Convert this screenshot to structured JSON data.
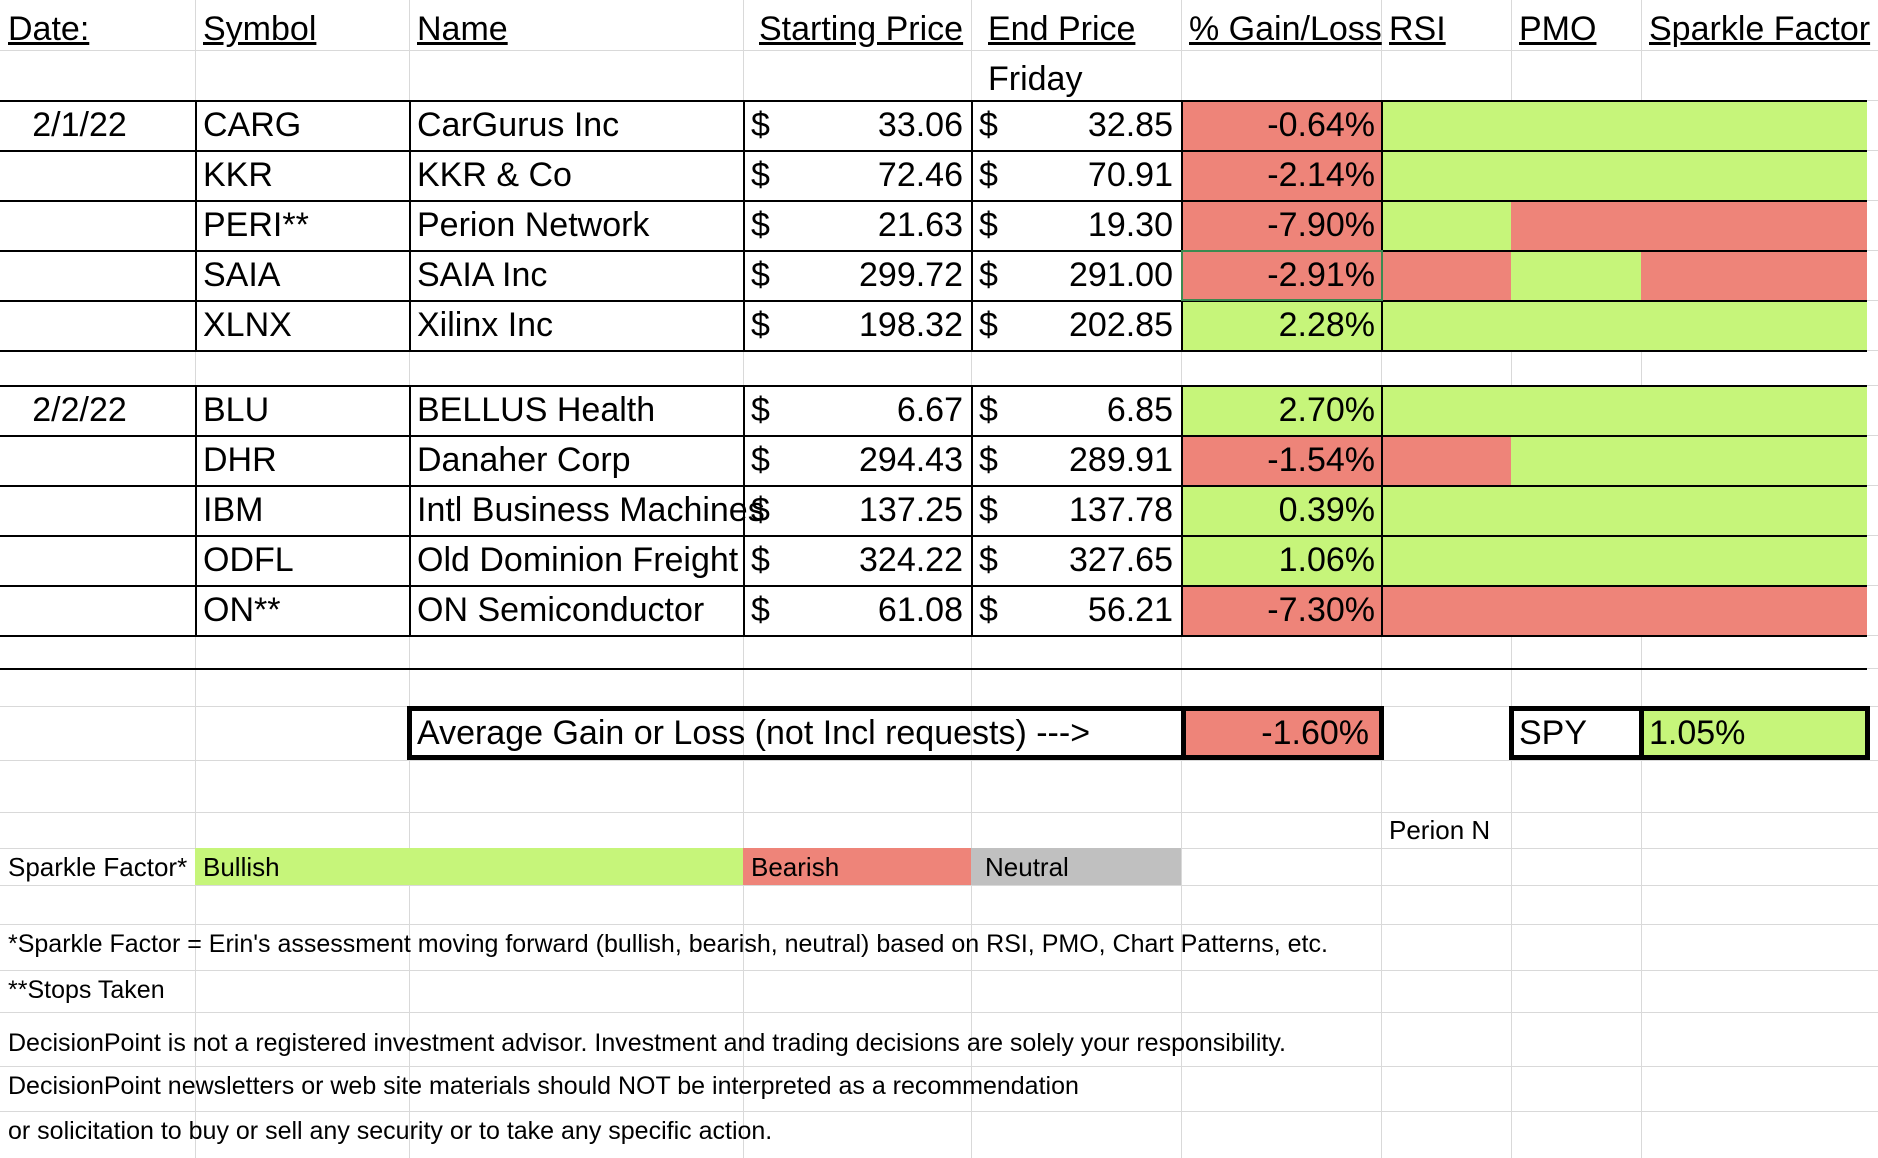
{
  "colors": {
    "bullish": "#c6f57a",
    "bearish": "#ee8479",
    "neutral": "#c0c0c0",
    "gridline": "#d9d9d9"
  },
  "headers": {
    "date": "Date:",
    "symbol": "Symbol",
    "name": "Name",
    "start_price": "Starting Price",
    "end_price": "End Price",
    "end_price_sub": "Friday",
    "gain_loss": "% Gain/Loss",
    "rsi": "RSI",
    "pmo": "PMO",
    "sparkle": "Sparkle Factor"
  },
  "currency_symbol": "$",
  "rows": [
    {
      "date": "2/1/22",
      "symbol": "CARG",
      "name": "CarGurus Inc",
      "start": "33.06",
      "end": "32.85",
      "gain": "-0.64%",
      "gain_status": "bearish",
      "rsi": "bullish",
      "pmo": "bullish",
      "sparkle": "bullish"
    },
    {
      "date": "",
      "symbol": "KKR",
      "name": "KKR & Co",
      "start": "72.46",
      "end": "70.91",
      "gain": "-2.14%",
      "gain_status": "bearish",
      "rsi": "bullish",
      "pmo": "bullish",
      "sparkle": "bullish"
    },
    {
      "date": "",
      "symbol": "PERI**",
      "name": "Perion Network",
      "start": "21.63",
      "end": "19.30",
      "gain": "-7.90%",
      "gain_status": "bearish",
      "rsi": "bullish",
      "pmo": "bearish",
      "sparkle": "bearish"
    },
    {
      "date": "",
      "symbol": "SAIA",
      "name": "SAIA Inc",
      "start": "299.72",
      "end": "291.00",
      "gain": "-2.91%",
      "gain_status": "bearish",
      "rsi": "bearish",
      "pmo": "bullish",
      "sparkle": "bearish"
    },
    {
      "date": "",
      "symbol": "XLNX",
      "name": "Xilinx Inc",
      "start": "198.32",
      "end": "202.85",
      "gain": "2.28%",
      "gain_status": "bullish",
      "rsi": "bullish",
      "pmo": "bullish",
      "sparkle": "bullish"
    },
    {
      "date": "2/2/22",
      "symbol": "BLU",
      "name": "BELLUS Health",
      "start": "6.67",
      "end": "6.85",
      "gain": "2.70%",
      "gain_status": "bullish",
      "rsi": "bullish",
      "pmo": "bullish",
      "sparkle": "bullish"
    },
    {
      "date": "",
      "symbol": "DHR",
      "name": "Danaher Corp",
      "start": "294.43",
      "end": "289.91",
      "gain": "-1.54%",
      "gain_status": "bearish",
      "rsi": "bearish",
      "pmo": "bullish",
      "sparkle": "bullish"
    },
    {
      "date": "",
      "symbol": "IBM",
      "name": "Intl Business Machines",
      "start": "137.25",
      "end": "137.78",
      "gain": "0.39%",
      "gain_status": "bullish",
      "rsi": "bullish",
      "pmo": "bullish",
      "sparkle": "bullish"
    },
    {
      "date": "",
      "symbol": "ODFL",
      "name": "Old Dominion Freight",
      "start": "324.22",
      "end": "327.65",
      "gain": "1.06%",
      "gain_status": "bullish",
      "rsi": "bullish",
      "pmo": "bullish",
      "sparkle": "bullish"
    },
    {
      "date": "",
      "symbol": "ON**",
      "name": "ON Semiconductor",
      "start": "61.08",
      "end": "56.21",
      "gain": "-7.30%",
      "gain_status": "bearish",
      "rsi": "bearish",
      "pmo": "bearish",
      "sparkle": "bearish"
    }
  ],
  "average": {
    "label": "Average Gain or Loss (not Incl requests) --->",
    "value": "-1.60%",
    "status": "bearish"
  },
  "spy": {
    "label": "SPY",
    "value": "1.05%",
    "status": "bullish"
  },
  "note_cell": "Perion N",
  "legend": {
    "label": "Sparkle Factor*",
    "bullish": "Bullish",
    "bearish": "Bearish",
    "neutral": "Neutral"
  },
  "footnotes": {
    "sparkle_def": "*Sparkle Factor = Erin's assessment moving forward (bullish, bearish, neutral) based on RSI, PMO, Chart Patterns, etc.",
    "stops": "**Stops Taken",
    "disclaimer_1": "DecisionPoint is not a registered investment advisor. Investment and trading decisions are solely your responsibility.",
    "disclaimer_2": "DecisionPoint newsletters or web site materials should NOT be interpreted as a recommendation",
    "disclaimer_3": "or solicitation to buy or sell any security or to take any specific action."
  }
}
